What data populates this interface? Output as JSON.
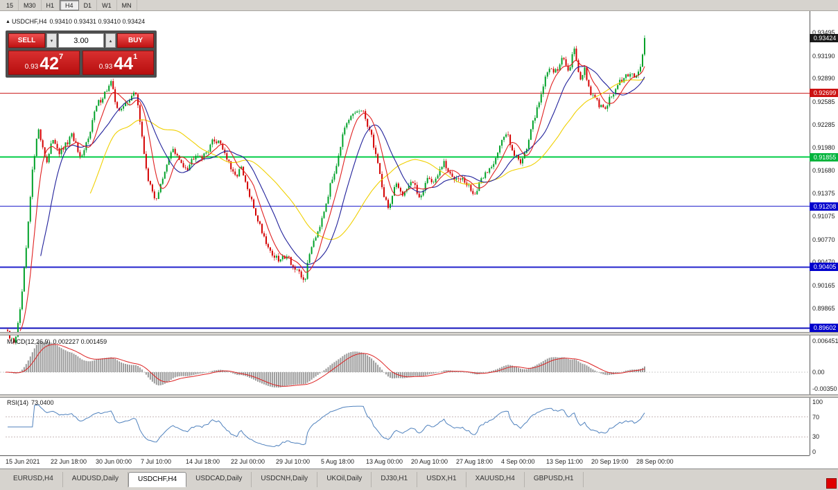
{
  "toolbar": {
    "timeframes": [
      {
        "label": "15",
        "active": false
      },
      {
        "label": "M30",
        "active": false
      },
      {
        "label": "H1",
        "active": false
      },
      {
        "label": "H4",
        "active": true
      },
      {
        "label": "D1",
        "active": false
      },
      {
        "label": "W1",
        "active": false
      },
      {
        "label": "MN",
        "active": false
      }
    ]
  },
  "chart_header": {
    "marker": "▲",
    "symbol": "USDCHF,H4",
    "ohlc": "0.93410 0.93431 0.93410 0.93424"
  },
  "trade_panel": {
    "sell_label": "SELL",
    "buy_label": "BUY",
    "volume": "3.00",
    "spinner_down": "▾",
    "spinner_up": "▴",
    "sell_price": {
      "prefix": "0.93",
      "big": "42",
      "sup": "7"
    },
    "buy_price": {
      "prefix": "0.93",
      "big": "44",
      "sup": "1"
    }
  },
  "price_axis": {
    "ticks": [
      "0.93495",
      "0.93190",
      "0.92890",
      "0.92585",
      "0.92285",
      "0.91980",
      "0.91680",
      "0.91375",
      "0.91075",
      "0.90770",
      "0.90470",
      "0.90165",
      "0.89865"
    ],
    "markers": [
      {
        "price": 0.93424,
        "text": "0.93424",
        "color": "#1a1a1a",
        "kind": "bid"
      },
      {
        "price": 0.92699,
        "text": "0.92699",
        "color": "#cc1111",
        "kind": "hline"
      },
      {
        "price": 0.91855,
        "text": "0.91855",
        "color": "#00b43c",
        "kind": "hline"
      },
      {
        "price": 0.91208,
        "text": "0.91208",
        "color": "#0000cd",
        "kind": "hline"
      },
      {
        "price": 0.90405,
        "text": "0.90405",
        "color": "#0000cd",
        "kind": "hline"
      },
      {
        "price": 0.89602,
        "text": "0.89602",
        "color": "#0000cd",
        "kind": "hline"
      }
    ]
  },
  "time_axis": [
    "15 Jun 2021",
    "22 Jun 18:00",
    "30 Jun 00:00",
    "7 Jul 10:00",
    "14 Jul 18:00",
    "22 Jul 00:00",
    "29 Jul 10:00",
    "5 Aug 18:00",
    "13 Aug 00:00",
    "20 Aug 10:00",
    "27 Aug 18:00",
    "4 Sep 00:00",
    "13 Sep 11:00",
    "20 Sep 19:00",
    "28 Sep 00:00"
  ],
  "macd": {
    "label": "MACD(12,26,9)",
    "values": "0.002227 0.001459",
    "axis": [
      {
        "v": 0.006451,
        "text": "0.006451"
      },
      {
        "v": 0,
        "text": "0.00"
      },
      {
        "v": -0.0035,
        "text": "-0.00350"
      }
    ]
  },
  "rsi": {
    "label": "RSI(14)",
    "value": "73.0400",
    "axis": [
      {
        "v": 100,
        "text": "100"
      },
      {
        "v": 70,
        "text": "70"
      },
      {
        "v": 30,
        "text": "30"
      },
      {
        "v": 0,
        "text": "0"
      }
    ],
    "levels": [
      70,
      30
    ]
  },
  "tabs": [
    {
      "label": "EURUSD,H4",
      "active": false
    },
    {
      "label": "AUDUSD,Daily",
      "active": false
    },
    {
      "label": "USDCHF,H4",
      "active": true
    },
    {
      "label": "USDCAD,Daily",
      "active": false
    },
    {
      "label": "USDCNH,Daily",
      "active": false
    },
    {
      "label": "UKOil,Daily",
      "active": false
    },
    {
      "label": "DJ30,H1",
      "active": false
    },
    {
      "label": "USDX,H1",
      "active": false
    },
    {
      "label": "XAUUSD,H4",
      "active": false
    },
    {
      "label": "GBPUSD,H1",
      "active": false
    }
  ],
  "chart_data": {
    "type": "candlestick",
    "symbol": "USDCHF",
    "timeframe": "H4",
    "price_range": [
      0.8956,
      0.9356
    ],
    "bars": 310,
    "last_close": 0.93424,
    "up_color": "#00a128",
    "down_color": "#d40000",
    "ma": [
      {
        "period": 8,
        "color": "#e02020"
      },
      {
        "period": 18,
        "color": "#20209a"
      },
      {
        "period": 42,
        "color": "#f0d000"
      }
    ],
    "hlines": [
      {
        "price": 0.92699,
        "color": "#cc2222",
        "w": 1
      },
      {
        "price": 0.91855,
        "color": "#00cc44",
        "w": 2
      },
      {
        "price": 0.91208,
        "color": "#2222cc",
        "w": 1
      },
      {
        "price": 0.90405,
        "color": "#2222cc",
        "w": 2
      },
      {
        "price": 0.89602,
        "color": "#1111bb",
        "w": 2
      }
    ],
    "macd_hist_color": "#9a9a9a",
    "macd_signal_color": "#dd2222",
    "macd_clip": [
      -0.0034,
      0.0063
    ],
    "rsi_color": "#4f81bd",
    "price_path": [
      [
        0.0,
        0.8958
      ],
      [
        0.006,
        0.8947
      ],
      [
        0.014,
        0.8942
      ],
      [
        0.022,
        0.8975
      ],
      [
        0.032,
        0.906
      ],
      [
        0.042,
        0.9165
      ],
      [
        0.05,
        0.9225
      ],
      [
        0.058,
        0.92
      ],
      [
        0.065,
        0.9178
      ],
      [
        0.075,
        0.9212
      ],
      [
        0.085,
        0.919
      ],
      [
        0.095,
        0.9202
      ],
      [
        0.105,
        0.9215
      ],
      [
        0.118,
        0.9178
      ],
      [
        0.13,
        0.9215
      ],
      [
        0.142,
        0.9252
      ],
      [
        0.155,
        0.927
      ],
      [
        0.165,
        0.9283
      ],
      [
        0.172,
        0.9258
      ],
      [
        0.18,
        0.9245
      ],
      [
        0.192,
        0.9262
      ],
      [
        0.205,
        0.927
      ],
      [
        0.215,
        0.92
      ],
      [
        0.225,
        0.9148
      ],
      [
        0.235,
        0.913
      ],
      [
        0.248,
        0.916
      ],
      [
        0.26,
        0.9198
      ],
      [
        0.272,
        0.918
      ],
      [
        0.285,
        0.9172
      ],
      [
        0.298,
        0.9192
      ],
      [
        0.31,
        0.9185
      ],
      [
        0.322,
        0.9205
      ],
      [
        0.335,
        0.9208
      ],
      [
        0.348,
        0.918
      ],
      [
        0.358,
        0.9158
      ],
      [
        0.368,
        0.9172
      ],
      [
        0.38,
        0.9138
      ],
      [
        0.392,
        0.911
      ],
      [
        0.404,
        0.9082
      ],
      [
        0.415,
        0.906
      ],
      [
        0.428,
        0.9048
      ],
      [
        0.44,
        0.9058
      ],
      [
        0.452,
        0.9038
      ],
      [
        0.462,
        0.9028
      ],
      [
        0.468,
        0.9022
      ],
      [
        0.478,
        0.9068
      ],
      [
        0.49,
        0.9092
      ],
      [
        0.502,
        0.9128
      ],
      [
        0.515,
        0.9168
      ],
      [
        0.528,
        0.9215
      ],
      [
        0.54,
        0.9238
      ],
      [
        0.552,
        0.9248
      ],
      [
        0.562,
        0.924
      ],
      [
        0.572,
        0.9215
      ],
      [
        0.582,
        0.918
      ],
      [
        0.592,
        0.9135
      ],
      [
        0.6,
        0.9118
      ],
      [
        0.61,
        0.9148
      ],
      [
        0.622,
        0.9138
      ],
      [
        0.635,
        0.9155
      ],
      [
        0.648,
        0.9132
      ],
      [
        0.66,
        0.9158
      ],
      [
        0.672,
        0.9152
      ],
      [
        0.685,
        0.9178
      ],
      [
        0.698,
        0.9158
      ],
      [
        0.71,
        0.9162
      ],
      [
        0.722,
        0.9148
      ],
      [
        0.735,
        0.9136
      ],
      [
        0.748,
        0.9162
      ],
      [
        0.76,
        0.9172
      ],
      [
        0.772,
        0.9198
      ],
      [
        0.785,
        0.9218
      ],
      [
        0.795,
        0.9192
      ],
      [
        0.805,
        0.9178
      ],
      [
        0.818,
        0.9205
      ],
      [
        0.83,
        0.9245
      ],
      [
        0.842,
        0.9282
      ],
      [
        0.852,
        0.9305
      ],
      [
        0.862,
        0.9298
      ],
      [
        0.872,
        0.9315
      ],
      [
        0.882,
        0.93
      ],
      [
        0.89,
        0.9333
      ],
      [
        0.898,
        0.9288
      ],
      [
        0.906,
        0.93
      ],
      [
        0.915,
        0.927
      ],
      [
        0.925,
        0.9258
      ],
      [
        0.935,
        0.9248
      ],
      [
        0.945,
        0.9262
      ],
      [
        0.955,
        0.9275
      ],
      [
        0.965,
        0.9288
      ],
      [
        0.975,
        0.9292
      ],
      [
        0.985,
        0.9295
      ],
      [
        0.993,
        0.9302
      ],
      [
        1.0,
        0.93424
      ]
    ]
  }
}
